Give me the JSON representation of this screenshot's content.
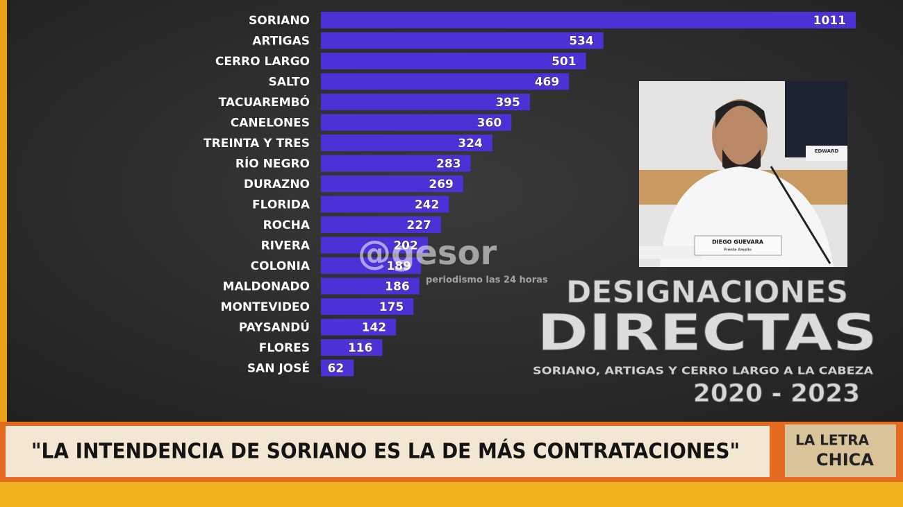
{
  "chart_data": {
    "type": "bar",
    "orientation": "horizontal",
    "title": [
      "DESIGNACIONES",
      "DIRECTAS"
    ],
    "subtitle": "SORIANO, ARTIGAS Y CERRO LARGO A LA CABEZA",
    "period": "2020 - 2023",
    "categories": [
      "SORIANO",
      "ARTIGAS",
      "CERRO LARGO",
      "SALTO",
      "TACUAREMBÓ",
      "CANELONES",
      "TREINTA Y TRES",
      "RÍO NEGRO",
      "DURAZNO",
      "FLORIDA",
      "ROCHA",
      "RIVERA",
      "COLONIA",
      "MALDONADO",
      "MONTEVIDEO",
      "PAYSANDÚ",
      "FLORES",
      "SAN JOSÉ"
    ],
    "values": [
      1011,
      534,
      501,
      469,
      395,
      360,
      324,
      283,
      269,
      242,
      227,
      202,
      189,
      186,
      175,
      142,
      116,
      62
    ],
    "color": "#4b32d6"
  },
  "watermark": {
    "name": "@gesor",
    "tagline": "periodismo las 24 horas"
  },
  "inset": {
    "nameplate": "DIEGO GUEVARA",
    "party": "Frente Amplio",
    "other_nameplate": "EDWARD"
  },
  "banner": {
    "quote": "\"LA INTENDENCIA DE SORIANO ES LA DE MÁS CONTRATACIONES\"",
    "logo": [
      "LA LETRA",
      "CHICA"
    ]
  }
}
